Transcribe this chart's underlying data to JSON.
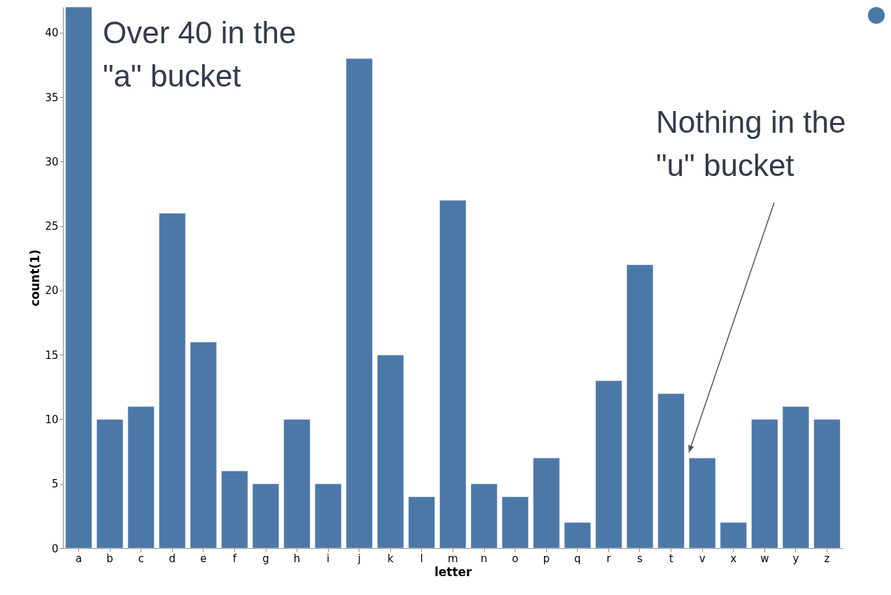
{
  "chart_data": {
    "type": "bar",
    "xlabel": "letter",
    "ylabel": "count(1)",
    "categories": [
      "a",
      "b",
      "c",
      "d",
      "e",
      "f",
      "g",
      "h",
      "i",
      "j",
      "k",
      "l",
      "m",
      "n",
      "o",
      "p",
      "q",
      "r",
      "s",
      "t",
      "v",
      "x",
      "w",
      "y",
      "z"
    ],
    "values": [
      42,
      10,
      11,
      26,
      16,
      6,
      5,
      10,
      5,
      38,
      15,
      4,
      27,
      5,
      4,
      7,
      2,
      13,
      22,
      12,
      7,
      2,
      10,
      11,
      10
    ],
    "color": "#4c78a8",
    "ylim": [
      0,
      42
    ],
    "yticks": [
      0,
      5,
      10,
      15,
      20,
      25,
      30,
      35,
      40
    ],
    "grid": false,
    "annotations": [
      "Over 40 in the \"a\" bucket",
      "Nothing in the \"u\" bucket"
    ]
  }
}
